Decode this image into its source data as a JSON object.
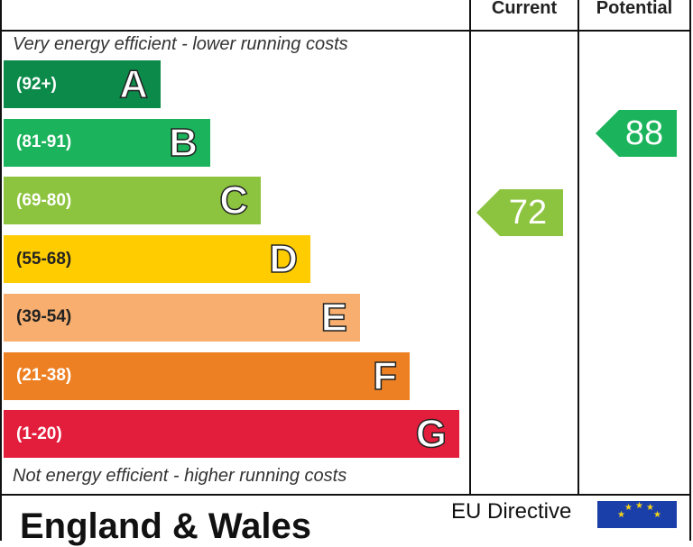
{
  "header": {
    "current": "Current",
    "potential": "Potential"
  },
  "top_note": "Very energy efficient - lower running costs",
  "bottom_note": "Not energy efficient - higher running costs",
  "footer": {
    "title": "England & Wales",
    "eu": "EU Directive"
  },
  "colors": {
    "A": "#0b8a4a",
    "B": "#1bb35b",
    "C": "#8dc43f",
    "D": "#ffcc00",
    "E": "#f7ae6e",
    "F": "#ee8024",
    "G": "#e31d3c"
  },
  "chart_data": {
    "type": "bar",
    "bands": [
      {
        "letter": "A",
        "range": "(92+)",
        "min": 92,
        "max": 100
      },
      {
        "letter": "B",
        "range": "(81-91)",
        "min": 81,
        "max": 91
      },
      {
        "letter": "C",
        "range": "(69-80)",
        "min": 69,
        "max": 80
      },
      {
        "letter": "D",
        "range": "(55-68)",
        "min": 55,
        "max": 68
      },
      {
        "letter": "E",
        "range": "(39-54)",
        "min": 39,
        "max": 54
      },
      {
        "letter": "F",
        "range": "(21-38)",
        "min": 21,
        "max": 38
      },
      {
        "letter": "G",
        "range": "(1-20)",
        "min": 1,
        "max": 20
      }
    ],
    "current": {
      "value": 72,
      "band": "C"
    },
    "potential": {
      "value": 88,
      "band": "B"
    }
  }
}
